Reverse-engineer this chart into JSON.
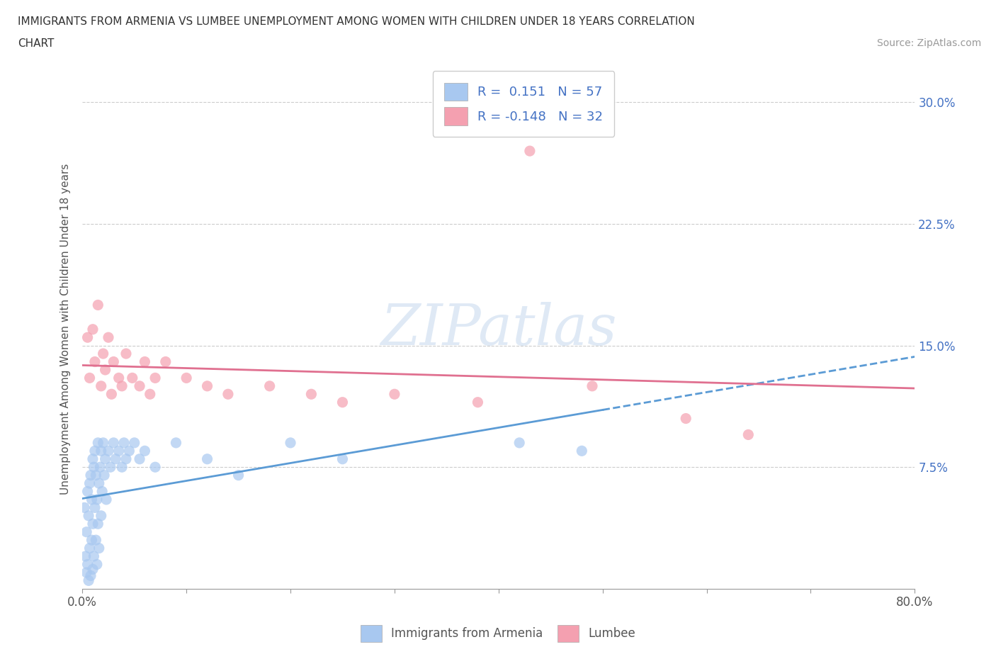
{
  "title_line1": "IMMIGRANTS FROM ARMENIA VS LUMBEE UNEMPLOYMENT AMONG WOMEN WITH CHILDREN UNDER 18 YEARS CORRELATION",
  "title_line2": "CHART",
  "source_text": "Source: ZipAtlas.com",
  "ylabel": "Unemployment Among Women with Children Under 18 years",
  "xlim": [
    0.0,
    0.8
  ],
  "ylim": [
    0.0,
    0.32
  ],
  "R_armenia": 0.151,
  "N_armenia": 57,
  "R_lumbee": -0.148,
  "N_lumbee": 32,
  "color_armenia": "#a8c8f0",
  "color_lumbee": "#f4a0b0",
  "line_armenia": "#5b9bd5",
  "line_lumbee": "#e07090",
  "color_text_blue": "#4472c4",
  "background_color": "#ffffff",
  "watermark_text": "ZIPatlas",
  "armenia_x": [
    0.002,
    0.003,
    0.004,
    0.004,
    0.005,
    0.005,
    0.006,
    0.006,
    0.007,
    0.007,
    0.008,
    0.008,
    0.009,
    0.009,
    0.01,
    0.01,
    0.01,
    0.011,
    0.011,
    0.012,
    0.012,
    0.013,
    0.013,
    0.014,
    0.014,
    0.015,
    0.015,
    0.016,
    0.016,
    0.017,
    0.018,
    0.018,
    0.019,
    0.02,
    0.021,
    0.022,
    0.023,
    0.025,
    0.027,
    0.03,
    0.032,
    0.035,
    0.038,
    0.04,
    0.042,
    0.045,
    0.05,
    0.055,
    0.06,
    0.07,
    0.09,
    0.12,
    0.15,
    0.2,
    0.25,
    0.42,
    0.48
  ],
  "armenia_y": [
    0.05,
    0.02,
    0.035,
    0.01,
    0.06,
    0.015,
    0.045,
    0.005,
    0.065,
    0.025,
    0.07,
    0.008,
    0.055,
    0.03,
    0.08,
    0.04,
    0.012,
    0.075,
    0.02,
    0.085,
    0.05,
    0.03,
    0.07,
    0.015,
    0.055,
    0.09,
    0.04,
    0.065,
    0.025,
    0.075,
    0.085,
    0.045,
    0.06,
    0.09,
    0.07,
    0.08,
    0.055,
    0.085,
    0.075,
    0.09,
    0.08,
    0.085,
    0.075,
    0.09,
    0.08,
    0.085,
    0.09,
    0.08,
    0.085,
    0.075,
    0.09,
    0.08,
    0.07,
    0.09,
    0.08,
    0.09,
    0.085
  ],
  "lumbee_x": [
    0.005,
    0.007,
    0.01,
    0.012,
    0.015,
    0.018,
    0.02,
    0.022,
    0.025,
    0.028,
    0.03,
    0.035,
    0.038,
    0.042,
    0.048,
    0.055,
    0.06,
    0.065,
    0.07,
    0.08,
    0.1,
    0.12,
    0.14,
    0.18,
    0.22,
    0.25,
    0.3,
    0.38,
    0.43,
    0.49,
    0.58,
    0.64
  ],
  "lumbee_y": [
    0.155,
    0.13,
    0.16,
    0.14,
    0.175,
    0.125,
    0.145,
    0.135,
    0.155,
    0.12,
    0.14,
    0.13,
    0.125,
    0.145,
    0.13,
    0.125,
    0.14,
    0.12,
    0.13,
    0.14,
    0.13,
    0.125,
    0.12,
    0.125,
    0.12,
    0.115,
    0.12,
    0.115,
    0.27,
    0.125,
    0.105,
    0.095
  ]
}
